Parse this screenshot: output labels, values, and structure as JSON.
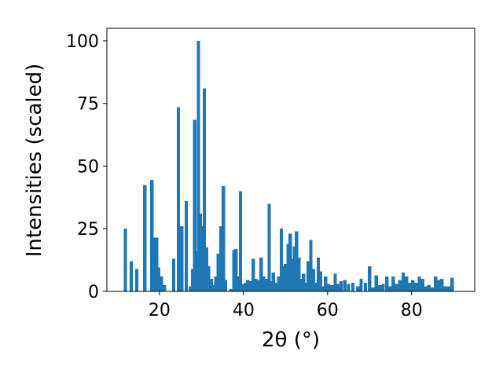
{
  "chart_data": {
    "type": "bar",
    "xlabel": "2θ (°)",
    "ylabel": "Intensities (scaled)",
    "xlim": [
      7.5,
      95
    ],
    "ylim": [
      0,
      105
    ],
    "xticks": [
      20,
      40,
      60,
      80
    ],
    "yticks": [
      0,
      25,
      50,
      75,
      100
    ],
    "bar_width": 0.8,
    "color": "#1f77b4",
    "grid": false,
    "x": [
      11.9,
      13.3,
      14.6,
      16.5,
      18.2,
      18.9,
      19.3,
      19.8,
      20.5,
      21.2,
      23.4,
      24.5,
      25.3,
      26.4,
      27.3,
      27.9,
      28.4,
      28.8,
      29.3,
      29.7,
      30.2,
      30.7,
      31.2,
      31.7,
      32.3,
      32.8,
      33.4,
      34.0,
      34.6,
      35.2,
      35.7,
      37.0,
      37.7,
      38.2,
      38.8,
      39.3,
      40.0,
      40.5,
      41.0,
      41.6,
      42.3,
      42.9,
      43.4,
      44.2,
      44.8,
      45.5,
      46.1,
      46.6,
      47.1,
      47.8,
      48.4,
      49.0,
      49.5,
      50.0,
      50.6,
      51.1,
      51.6,
      52.1,
      52.6,
      53.2,
      53.7,
      54.3,
      54.8,
      55.4,
      56.0,
      56.6,
      57.2,
      57.8,
      58.3,
      58.9,
      59.5,
      60.2,
      61.0,
      61.8,
      62.5,
      63.2,
      64.1,
      65.0,
      66.0,
      67.2,
      68.0,
      69.0,
      70.0,
      70.8,
      71.6,
      72.4,
      73.2,
      74.1,
      74.8,
      75.6,
      76.4,
      77.2,
      78.0,
      78.8,
      79.6,
      80.3,
      81.0,
      81.8,
      82.6,
      83.3,
      84.1,
      84.9,
      85.7,
      86.4,
      87.2,
      88.0,
      88.8,
      89.6
    ],
    "values": [
      25,
      12,
      9,
      42.5,
      44.5,
      21.5,
      21.5,
      9.5,
      6,
      2.5,
      13,
      73.5,
      26,
      36,
      2,
      9,
      68.5,
      16,
      100,
      31,
      26,
      81,
      17.5,
      10,
      5,
      2.5,
      6,
      15,
      26,
      42,
      4.5,
      1,
      16.5,
      17,
      6,
      40,
      3,
      3.5,
      4.5,
      4,
      13,
      5,
      4.5,
      13.5,
      6,
      5,
      35,
      4,
      7.5,
      3.5,
      6,
      25,
      10,
      11,
      19,
      23,
      13,
      18,
      24,
      13.5,
      5,
      7,
      3.5,
      12,
      20.5,
      9,
      3.5,
      13.5,
      8,
      2,
      6,
      3,
      2.5,
      7,
      3,
      4,
      4.5,
      3,
      3.5,
      2,
      5,
      3.5,
      10,
      1.5,
      6.5,
      2.5,
      3,
      6,
      2,
      6,
      3,
      4.5,
      7.5,
      6,
      3.5,
      4.5,
      3.5,
      6,
      5,
      2,
      2.5,
      1.5,
      6,
      4.5,
      5,
      2,
      2,
      5.5
    ]
  }
}
